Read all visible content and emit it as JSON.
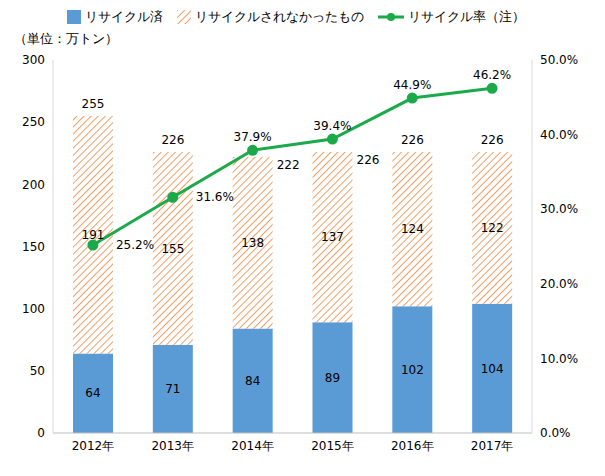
{
  "chart_data": {
    "type": "bar",
    "stacked": true,
    "y_label": "（単位：万トン）",
    "categories": [
      "2012年",
      "2013年",
      "2014年",
      "2015年",
      "2016年",
      "2017年"
    ],
    "series": [
      {
        "name": "リサイクル済",
        "color": "#5b9bd5",
        "values": [
          64,
          71,
          84,
          89,
          102,
          104
        ]
      },
      {
        "name": "リサイクルされなかったもの",
        "color": "#ed7d31",
        "values": [
          191,
          155,
          138,
          137,
          124,
          122
        ]
      },
      {
        "name": "リサイクル率（注）",
        "type": "line",
        "axis": "y2",
        "color": "#1aaa4a",
        "marker": "circle",
        "values": [
          25.2,
          31.6,
          37.9,
          39.4,
          44.9,
          46.2
        ],
        "value_labels": [
          "25.2%",
          "31.6%",
          "37.9%",
          "39.4%",
          "44.9%",
          "46.2%"
        ]
      }
    ],
    "totals": [
      255,
      226,
      222,
      226,
      226,
      226
    ],
    "ylim": [
      0,
      300
    ],
    "yticks": [
      0,
      50,
      100,
      150,
      200,
      250,
      300
    ],
    "y2lim": [
      0,
      50
    ],
    "y2ticks": [
      {
        "value": 0,
        "label": "0.0%"
      },
      {
        "value": 10,
        "label": "10.0%"
      },
      {
        "value": 20,
        "label": "20.0%"
      },
      {
        "value": 30,
        "label": "30.0%"
      },
      {
        "value": 40,
        "label": "40.0%"
      },
      {
        "value": 50,
        "label": "50.0%"
      }
    ],
    "data_labels": true,
    "grid": false,
    "legend": "top"
  }
}
